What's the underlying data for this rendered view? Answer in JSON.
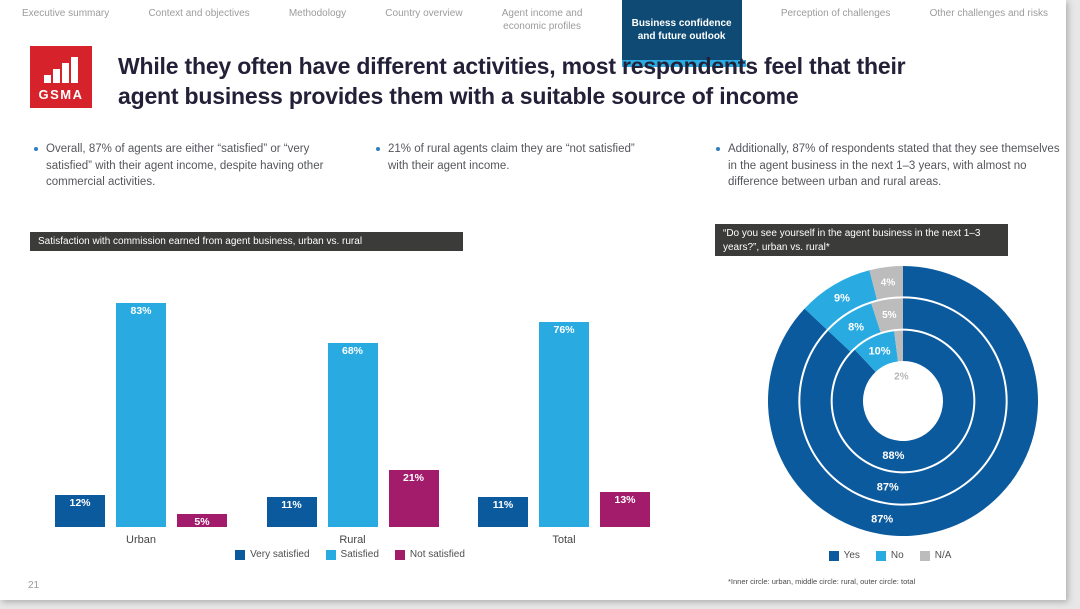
{
  "colors": {
    "dark_blue": "#0b5a9d",
    "light_blue": "#29abe2",
    "magenta": "#a31c6c",
    "na_gray": "#bcbcbc",
    "active_tab_bg": "#0e4a73",
    "active_tab_underline": "#29abe2",
    "header_bar_bg": "#3b3b3a",
    "logo_red": "#d6222a",
    "title_text": "#242038",
    "body_text": "#55565c",
    "nav_text": "#9c9c9e"
  },
  "nav": {
    "tabs": [
      {
        "label": "Executive summary",
        "active": false
      },
      {
        "label": "Context and objectives",
        "active": false
      },
      {
        "label": "Methodology",
        "active": false
      },
      {
        "label": "Country overview",
        "active": false
      },
      {
        "label": "Agent income and\neconomic profiles",
        "active": false
      },
      {
        "label": "Business confidence\nand future outlook",
        "active": true
      },
      {
        "label": "Perception of challenges",
        "active": false
      },
      {
        "label": "Other challenges and risks",
        "active": false
      }
    ]
  },
  "logo": {
    "text": "GSMA"
  },
  "header": {
    "title": "While they often have different activities, most respondents feel that their\nagent business provides them with a suitable source of income"
  },
  "bullets": [
    "Overall, 87% of agents are either “satisfied” or “very satisfied” with their agent income, despite having other commercial activities.",
    "21% of rural agents claim they are “not satisfied” with their agent income.",
    "Additionally, 87% of respondents stated that they see themselves in the agent business in the next 1–3 years, with almost no difference between urban and rural areas."
  ],
  "chart_data": [
    {
      "type": "bar",
      "title": "Satisfaction with commission earned from agent business, urban vs. rural",
      "categories": [
        "Urban",
        "Rural",
        "Total"
      ],
      "series": [
        {
          "name": "Very satisfied",
          "color": "#0b5a9d",
          "values": [
            12,
            11,
            11
          ]
        },
        {
          "name": "Satisfied",
          "color": "#29abe2",
          "values": [
            83,
            68,
            76
          ]
        },
        {
          "name": "Not satisfied",
          "color": "#a31c6c",
          "values": [
            5,
            21,
            13
          ]
        }
      ],
      "unit": "%",
      "ylim": [
        0,
        100
      ],
      "axes": "hidden",
      "value_labels": "inside-top-white",
      "legend_position": "bottom"
    },
    {
      "type": "pie",
      "subtype": "concentric-donut",
      "title": "“Do you see yourself in the agent business in the next 1–3 years?”, urban vs. rural*",
      "categories": [
        "Yes",
        "No",
        "N/A"
      ],
      "colors": [
        "#0b5a9d",
        "#29abe2",
        "#bcbcbc"
      ],
      "rings": [
        {
          "name": "urban (inner circle)",
          "values": [
            88,
            10,
            2
          ]
        },
        {
          "name": "rural (middle circle)",
          "values": [
            87,
            8,
            5
          ]
        },
        {
          "name": "total (outer circle)",
          "values": [
            87,
            9,
            4
          ]
        }
      ],
      "unit": "%",
      "legend_position": "bottom",
      "footnote": "*Inner circle: urban, middle circle: rural, outer circle: total"
    }
  ],
  "footer": {
    "page_number": "21"
  }
}
